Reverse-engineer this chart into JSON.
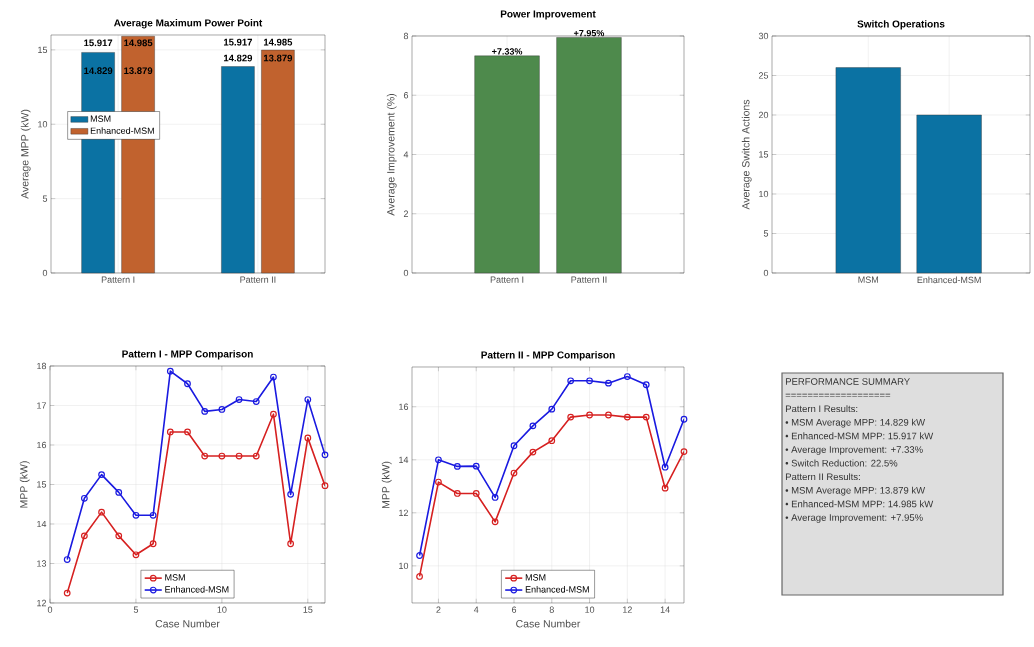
{
  "chart_data": [
    {
      "type": "bar",
      "title": "Average Maximum Power Point",
      "ylabel": "Average MPP (kW)",
      "categories": [
        "Pattern I",
        "Pattern II"
      ],
      "series": [
        {
          "name": "MSM",
          "color": "#0b72a3",
          "values": [
            14.829,
            13.879
          ]
        },
        {
          "name": "Enhanced-MSM",
          "color": "#c1622e",
          "values": [
            15.917,
            14.985
          ]
        }
      ],
      "ylim": [
        0,
        16
      ],
      "yticks": [
        0,
        5,
        10,
        15
      ],
      "grid": true,
      "legend": "left",
      "annotations": [
        "15.917",
        "14.985",
        "14.829",
        "13.879",
        "15.917",
        "14.985",
        "14.829",
        "13.879"
      ]
    },
    {
      "type": "bar",
      "title": "Power Improvement",
      "ylabel": "Average Improvement (%)",
      "categories": [
        "Pattern I",
        "Pattern II"
      ],
      "values": [
        7.33,
        7.95
      ],
      "value_labels": [
        "+7.33%",
        "+7.95%"
      ],
      "color": "#4e8a4c",
      "ylim": [
        0,
        8
      ],
      "yticks": [
        0,
        2,
        4,
        6,
        8
      ],
      "grid": true
    },
    {
      "type": "bar",
      "title": "Switch Operations",
      "ylabel": "Average Switch Actions",
      "categories": [
        "MSM",
        "Enhanced-MSM"
      ],
      "values": [
        26,
        20
      ],
      "color": "#0b72a3",
      "ylim": [
        0,
        30
      ],
      "yticks": [
        0,
        5,
        10,
        15,
        20,
        25,
        30
      ],
      "grid": true
    },
    {
      "type": "line",
      "title": "Pattern I - MPP Comparison",
      "xlabel": "Case Number",
      "ylabel": "MPP (kW)",
      "x": [
        1,
        2,
        3,
        4,
        5,
        6,
        7,
        8,
        9,
        10,
        11,
        12,
        13,
        14,
        15,
        16
      ],
      "series": [
        {
          "name": "MSM",
          "color": "#d62020",
          "values": [
            12.25,
            13.7,
            14.3,
            13.7,
            13.22,
            13.5,
            16.33,
            16.33,
            15.72,
            15.72,
            15.72,
            15.72,
            16.78,
            13.5,
            16.18,
            14.97
          ]
        },
        {
          "name": "Enhanced-MSM",
          "color": "#1a1ae0",
          "values": [
            13.1,
            14.65,
            15.25,
            14.8,
            14.22,
            14.22,
            17.87,
            17.55,
            16.85,
            16.9,
            17.15,
            17.1,
            17.72,
            14.75,
            17.15,
            15.75
          ]
        }
      ],
      "xlim": [
        0,
        16
      ],
      "xticks": [
        0,
        5,
        10,
        15
      ],
      "ylim": [
        12,
        18
      ],
      "yticks": [
        12,
        13,
        14,
        15,
        16,
        17,
        18
      ],
      "grid": true,
      "legend": "bottom",
      "marker": "circle"
    },
    {
      "type": "line",
      "title": "Pattern II - MPP Comparison",
      "xlabel": "Case Number",
      "ylabel": "MPP (kW)",
      "x": [
        1,
        2,
        3,
        4,
        5,
        6,
        7,
        8,
        9,
        10,
        11,
        12,
        13,
        14,
        15
      ],
      "series": [
        {
          "name": "MSM",
          "color": "#d62020",
          "values": [
            9.6,
            13.16,
            12.73,
            12.73,
            11.66,
            13.5,
            14.29,
            14.72,
            15.61,
            15.69,
            15.69,
            15.61,
            15.61,
            12.93,
            14.31
          ]
        },
        {
          "name": "Enhanced-MSM",
          "color": "#1a1ae0",
          "values": [
            10.39,
            14.0,
            13.75,
            13.76,
            12.58,
            14.53,
            15.28,
            15.91,
            16.98,
            16.98,
            16.89,
            17.14,
            16.83,
            13.72,
            15.53
          ]
        }
      ],
      "xlim": [
        0.6,
        15
      ],
      "xticks": [
        2,
        4,
        6,
        8,
        10,
        12,
        14
      ],
      "ylim": [
        8.6,
        17.5
      ],
      "yticks": [
        10,
        12,
        14,
        16
      ],
      "grid": true,
      "legend": "bottom",
      "marker": "circle"
    },
    {
      "type": "other",
      "annotations": [
        "PERFORMANCE SUMMARY",
        "===================",
        "Pattern I Results:",
        "• MSM Average MPP:    14.829 kW",
        "• Enhanced-MSM MPP:    15.917 kW",
        "• Average Improvement: +7.33%",
        "• Switch Reduction:    22.5%",
        "Pattern II Results:",
        "• MSM Average MPP:    13.879 kW",
        "• Enhanced-MSM MPP:    14.985 kW",
        "• Average Improvement: +7.95%"
      ]
    }
  ]
}
